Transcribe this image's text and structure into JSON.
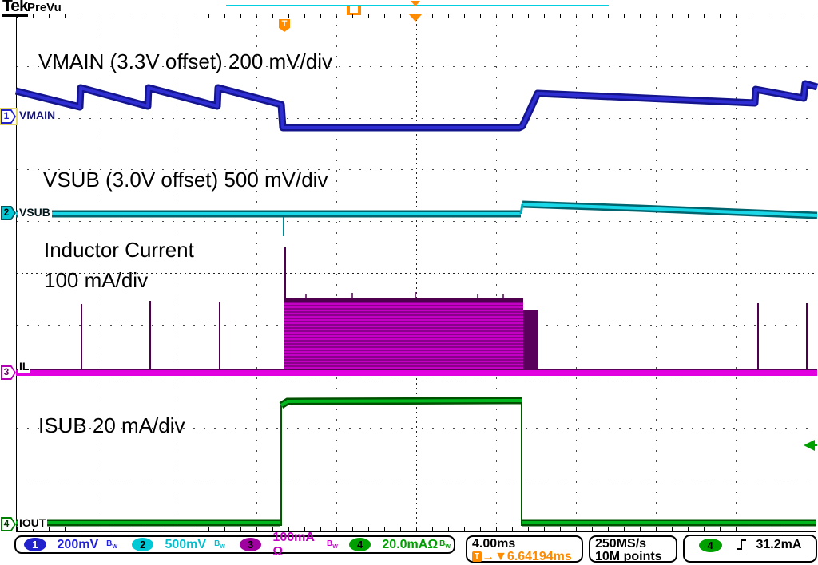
{
  "header": {
    "logo": "Tek",
    "acq_status": "PreVu"
  },
  "annotations": {
    "ch1": "VMAIN (3.3V offset) 200 mV/div",
    "ch2": "VSUB (3.0V offset) 500 mV/div",
    "ch3_line1": "Inductor Current",
    "ch3_line2": "100 mA/div",
    "ch4": "ISUB 20 mA/div"
  },
  "channels": [
    {
      "num": "1",
      "label": "VMAIN",
      "scale": "200mV",
      "unit": "",
      "color": "#2222cc"
    },
    {
      "num": "2",
      "label": "VSUB",
      "scale": "500mV",
      "unit": "",
      "color": "#00c8d4"
    },
    {
      "num": "3",
      "label": "IL",
      "scale": "100mA",
      "unit": " Ω",
      "color": "#c400c4"
    },
    {
      "num": "4",
      "label": "IOUT",
      "scale": "20.0mA",
      "unit": "Ω",
      "color": "#00a000"
    }
  ],
  "statusbar": {
    "bw_b": "B",
    "bw_w": "W",
    "timebase": "4.00ms",
    "trigger_badge": "T",
    "trig_arrow": "→",
    "trig_tri": "▼",
    "trig_delay": "6.64194ms",
    "sample_rate": "250MS/s",
    "record_length": "10M points",
    "trig_source_num": "4",
    "trig_level": "31.2mA"
  },
  "colors": {
    "ch1": "#1a1ab8",
    "ch2": "#00c4d0",
    "ch3": "#d800d8",
    "ch4": "#00a800",
    "trigger_orange": "#ff8c00"
  }
}
